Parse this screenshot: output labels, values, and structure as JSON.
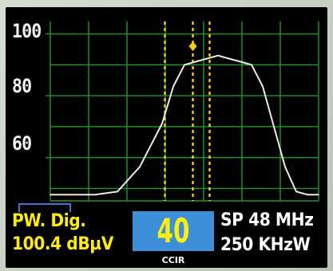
{
  "display": {
    "y_ticks": [
      "100",
      "80",
      "60"
    ],
    "mode_label": "PW. Dig.",
    "level_value": "100.4 dBµV",
    "channel_number": "40",
    "standard_label": "CCIR",
    "span_label": "SP 48 MHz",
    "rbw_label": "250 KHzW"
  },
  "colors": {
    "screen_bg": "#000000",
    "grid": "#1c9a28",
    "trace": "#f2e9de",
    "marker": "#ffd000",
    "channel_box": "#3d8fd8",
    "readout_yellow": "#ffeb10"
  },
  "chart_data": {
    "type": "line",
    "xlabel": "",
    "ylabel": "",
    "ylim": [
      46,
      104
    ],
    "yticks": [
      100,
      80,
      60
    ],
    "grid": true,
    "x": [
      0,
      4,
      8,
      12,
      16,
      20,
      22,
      24,
      26,
      28,
      30,
      32,
      34,
      36,
      38,
      40,
      42,
      44,
      46,
      48
    ],
    "y": [
      48,
      48,
      48,
      49,
      57,
      71,
      83,
      90,
      91,
      92,
      93,
      92,
      91,
      90,
      83,
      70,
      57,
      49,
      48,
      48
    ],
    "channel_markers_x": [
      20.5,
      25.5,
      28.5
    ],
    "peak_marker": {
      "x": 25.5,
      "y": 96
    }
  }
}
